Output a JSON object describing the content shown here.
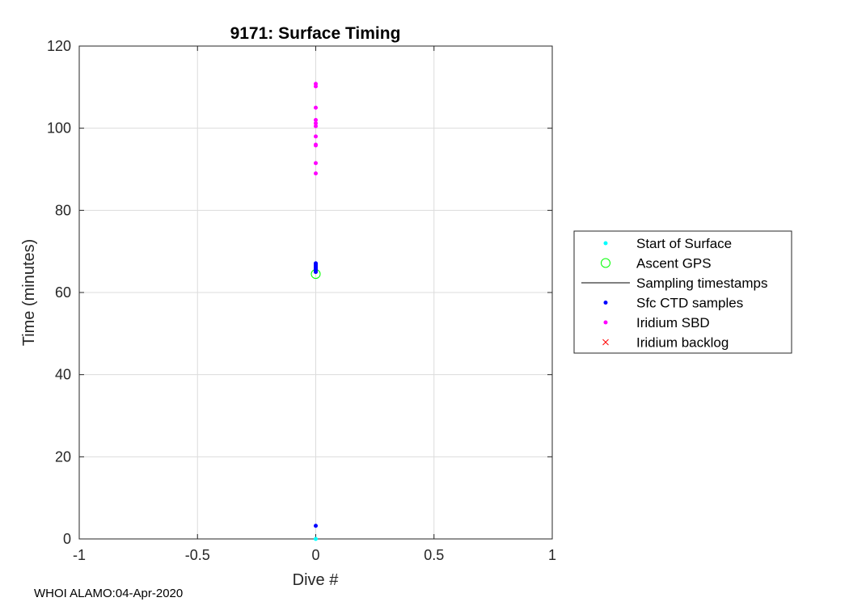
{
  "chart_data": {
    "type": "scatter",
    "title": "9171: Surface Timing",
    "xlabel": "Dive #",
    "ylabel": "Time (minutes)",
    "xlim": [
      -1,
      1
    ],
    "ylim": [
      0,
      120
    ],
    "x_ticks": [
      "-1",
      "-0.5",
      "0",
      "0.5",
      "1"
    ],
    "y_ticks": [
      "0",
      "20",
      "40",
      "60",
      "80",
      "100",
      "120"
    ],
    "grid": true,
    "legend_position": "outside-right",
    "series": [
      {
        "name": "Start of Surface",
        "marker": "dot",
        "color": "#00ffff",
        "points": [
          [
            0,
            0
          ]
        ]
      },
      {
        "name": "Ascent GPS",
        "marker": "circle",
        "color": "#00ff00",
        "points": [
          [
            0,
            64.5
          ]
        ]
      },
      {
        "name": "Sampling timestamps",
        "marker": "line",
        "color": "#000000",
        "points": []
      },
      {
        "name": "Sfc CTD samples",
        "marker": "dot",
        "color": "#0000ff",
        "points": [
          [
            0,
            3.2
          ],
          [
            0,
            65.0
          ],
          [
            0,
            65.3
          ],
          [
            0,
            65.6
          ],
          [
            0,
            65.9
          ],
          [
            0,
            66.2
          ],
          [
            0,
            66.5
          ],
          [
            0,
            66.8
          ],
          [
            0,
            67.1
          ]
        ]
      },
      {
        "name": "Iridium SBD",
        "marker": "dot",
        "color": "#ff00ff",
        "points": [
          [
            0,
            89.0
          ],
          [
            0,
            91.5
          ],
          [
            0,
            95.8
          ],
          [
            0,
            96.0
          ],
          [
            0,
            98.0
          ],
          [
            0,
            100.5
          ],
          [
            0,
            101.2
          ],
          [
            0,
            102.0
          ],
          [
            0,
            105.0
          ],
          [
            0,
            110.2
          ],
          [
            0,
            110.8
          ]
        ]
      },
      {
        "name": "Iridium backlog",
        "marker": "x",
        "color": "#ff0000",
        "points": []
      }
    ]
  },
  "footer": "WHOI ALAMO:04-Apr-2020"
}
